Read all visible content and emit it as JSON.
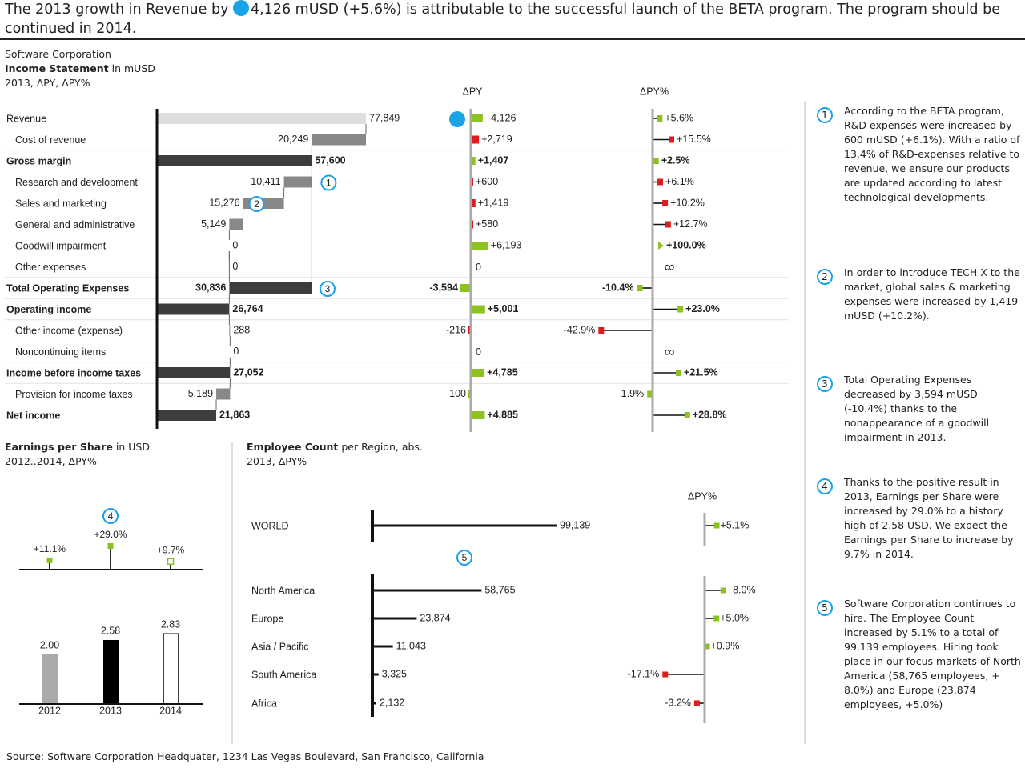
{
  "headline": {
    "before": "The 2013 growth in Revenue by ",
    "after": "4,126 mUSD (+5.6%) is attributable to the successful launch of the BETA program. The program should be continued in 2014."
  },
  "income_title": {
    "company": "Software Corporation",
    "title_bold": "Income Statement",
    "title_rest": " in mUSD",
    "subtitle": "2013, ΔPY, ΔPY%"
  },
  "eps_title": {
    "title_bold": "Earnings per Share",
    "title_rest": " in USD",
    "subtitle": "2012..2014, ΔPY%"
  },
  "emp_title": {
    "title_bold": "Employee Count",
    "title_rest": " per Region, abs.",
    "subtitle": "2013, ΔPY%"
  },
  "colors": {
    "positive": "#8cc21f",
    "negative": "#e01b1b",
    "bar_dark": "#3d3d3d",
    "bar_mid": "#888888",
    "bar_light": "#dedede",
    "axis": "#aaaaaa",
    "accent": "#1aa3e6"
  },
  "chart_data": [
    {
      "type": "bar",
      "title": "Income Statement",
      "unit": "mUSD",
      "header_dpy": "ΔPY",
      "header_dpyp": "ΔPY%",
      "rows": [
        {
          "label": "Revenue",
          "value": 77849,
          "value_label": "77,849",
          "kind": "base",
          "bold": false,
          "indent": false,
          "dpy": 4126,
          "dpy_label": "+4,126",
          "dpyp": 5.6,
          "dpyp_label": "+5.6%",
          "badge": ""
        },
        {
          "label": "Cost of revenue",
          "value": 20249,
          "value_label": "20,249",
          "kind": "step",
          "bold": false,
          "indent": true,
          "dpy": 2719,
          "dpy_label": "+2,719",
          "dpy_neg": true,
          "dpyp": 15.5,
          "dpyp_label": "+15.5%",
          "dpyp_neg": true,
          "badge": ""
        },
        {
          "label": "Gross margin",
          "value": 57600,
          "value_label": "57,600",
          "kind": "total",
          "bold": true,
          "indent": false,
          "dpy": 1407,
          "dpy_label": "+1,407",
          "dpyp": 2.5,
          "dpyp_label": "+2.5%",
          "badge": ""
        },
        {
          "label": "Research and development",
          "value": 10411,
          "value_label": "10,411",
          "kind": "step",
          "bold": false,
          "indent": true,
          "dpy": 600,
          "dpy_label": "+600",
          "dpy_neg": true,
          "dpyp": 6.1,
          "dpyp_label": "+6.1%",
          "dpyp_neg": true,
          "badge": "1"
        },
        {
          "label": "Sales and marketing",
          "value": 15276,
          "value_label": "15,276",
          "kind": "step",
          "bold": false,
          "indent": true,
          "dpy": 1419,
          "dpy_label": "+1,419",
          "dpy_neg": true,
          "dpyp": 10.2,
          "dpyp_label": "+10.2%",
          "dpyp_neg": true,
          "badge": "2"
        },
        {
          "label": "General and administrative",
          "value": 5149,
          "value_label": "5,149",
          "kind": "step",
          "bold": false,
          "indent": true,
          "dpy": 580,
          "dpy_label": "+580",
          "dpy_neg": true,
          "dpyp": 12.7,
          "dpyp_label": "+12.7%",
          "dpyp_neg": true,
          "badge": ""
        },
        {
          "label": "Goodwill impairment",
          "value": 0,
          "value_label": "0",
          "kind": "step",
          "bold": false,
          "indent": true,
          "dpy": 6193,
          "dpy_label": "+6,193",
          "dpyp": 100.0,
          "dpyp_label": "+100.0%",
          "dpyp_bold": true,
          "dpyp_arrow": true,
          "badge": ""
        },
        {
          "label": "Other expenses",
          "value": 0,
          "value_label": "0",
          "kind": "step",
          "bold": false,
          "indent": true,
          "dpy": 0,
          "dpy_label": "0",
          "dpyp": null,
          "dpyp_label": "∞",
          "badge": ""
        },
        {
          "label": "Total Operating Expenses",
          "value": 30836,
          "value_label": "30,836",
          "kind": "subtotal",
          "bold": true,
          "indent": false,
          "dpy": -3594,
          "dpy_label": "-3,594",
          "dpyp": -10.4,
          "dpyp_label": "-10.4%",
          "badge": "3"
        },
        {
          "label": "Operating income",
          "value": 26764,
          "value_label": "26,764",
          "kind": "total",
          "bold": true,
          "indent": false,
          "dpy": 5001,
          "dpy_label": "+5,001",
          "dpyp": 23.0,
          "dpyp_label": "+23.0%",
          "badge": ""
        },
        {
          "label": "Other income (expense)",
          "value": 288,
          "value_label": "288",
          "kind": "step",
          "bold": false,
          "indent": true,
          "dpy": -216,
          "dpy_label": "-216",
          "dpy_neg": true,
          "dpyp": -42.9,
          "dpyp_label": "-42.9%",
          "dpyp_neg": true,
          "badge": ""
        },
        {
          "label": "Noncontinuing items",
          "value": 0,
          "value_label": "0",
          "kind": "step",
          "bold": false,
          "indent": true,
          "dpy": 0,
          "dpy_label": "0",
          "dpyp": null,
          "dpyp_label": "∞",
          "badge": ""
        },
        {
          "label": "Income before income taxes",
          "value": 27052,
          "value_label": "27,052",
          "kind": "total",
          "bold": true,
          "indent": false,
          "dpy": 4785,
          "dpy_label": "+4,785",
          "dpyp": 21.5,
          "dpyp_label": "+21.5%",
          "badge": ""
        },
        {
          "label": "Provision for income taxes",
          "value": 5189,
          "value_label": "5,189",
          "kind": "step",
          "bold": false,
          "indent": true,
          "dpy": -100,
          "dpy_label": "-100",
          "dpyp": -1.9,
          "dpyp_label": "-1.9%",
          "badge": ""
        },
        {
          "label": "Net income",
          "value": 21863,
          "value_label": "21,863",
          "kind": "total",
          "bold": true,
          "indent": false,
          "dpy": 4885,
          "dpy_label": "+4,885",
          "dpyp": 28.8,
          "dpyp_label": "+28.8%",
          "badge": ""
        }
      ]
    },
    {
      "type": "bar",
      "title": "Earnings per Share",
      "unit": "USD",
      "badge": "4",
      "categories": [
        "2012",
        "2013",
        "2014"
      ],
      "values": [
        2.0,
        2.58,
        2.83
      ],
      "value_labels": [
        "2.00",
        "2.58",
        "2.83"
      ],
      "dpyp": [
        11.1,
        29.0,
        9.7
      ],
      "dpyp_labels": [
        "+11.1%",
        "+29.0%",
        "+9.7%"
      ],
      "styles": [
        "previous",
        "actual",
        "plan"
      ]
    },
    {
      "type": "bar",
      "title": "Employee Count",
      "unit": "abs.",
      "header_dpyp": "ΔPY%",
      "badge": "5",
      "world": {
        "label": "WORLD",
        "value": 99139,
        "value_label": "99,139",
        "dpyp": 5.1,
        "dpyp_label": "+5.1%"
      },
      "regions": [
        {
          "label": "North America",
          "value": 58765,
          "value_label": "58,765",
          "dpyp": 8.0,
          "dpyp_label": "+8.0%"
        },
        {
          "label": "Europe",
          "value": 23874,
          "value_label": "23,874",
          "dpyp": 5.0,
          "dpyp_label": "+5.0%"
        },
        {
          "label": "Asia / Pacific",
          "value": 11043,
          "value_label": "11,043",
          "dpyp": 0.9,
          "dpyp_label": "+0.9%"
        },
        {
          "label": "South America",
          "value": 3325,
          "value_label": "3,325",
          "dpyp": -17.1,
          "dpyp_label": "-17.1%"
        },
        {
          "label": "Africa",
          "value": 2132,
          "value_label": "2,132",
          "dpyp": -3.2,
          "dpyp_label": "-3.2%"
        }
      ]
    }
  ],
  "notes": [
    {
      "num": "1",
      "text": "According to the BETA program, R&D expenses were increased by 600 mUSD (+6.1%). With a ratio of 13,4% of R&D-expenses relative to revenue, we ensure our products are updated according to latest technological developments."
    },
    {
      "num": "2",
      "text": "In order to introduce TECH X to the market, global sales & marketing expenses were increased by 1,419 mUSD (+10.2%)."
    },
    {
      "num": "3",
      "text": "Total Operating Expenses decreased by 3,594 mUSD (-10.4%) thanks to the nonappearance of a goodwill impairment in 2013."
    },
    {
      "num": "4",
      "text": "Thanks to the positive result in 2013, Earnings per Share were increased by 29.0% to a history high of 2.58 USD. We expect the Earnings per Share to increase by 9.7% in 2014."
    },
    {
      "num": "5",
      "text": "Software Corporation continues to hire. The Employee Count increased by 5.1% to a total of 99,139 employees. Hiring took place in our focus markets of North America (58,765 employees, + 8.0%) and Europe (23,874 employees, +5.0%)"
    }
  ],
  "source": "Source: Software Corporation Headquater, 1234 Las Vegas Boulevard, San Francisco, California"
}
